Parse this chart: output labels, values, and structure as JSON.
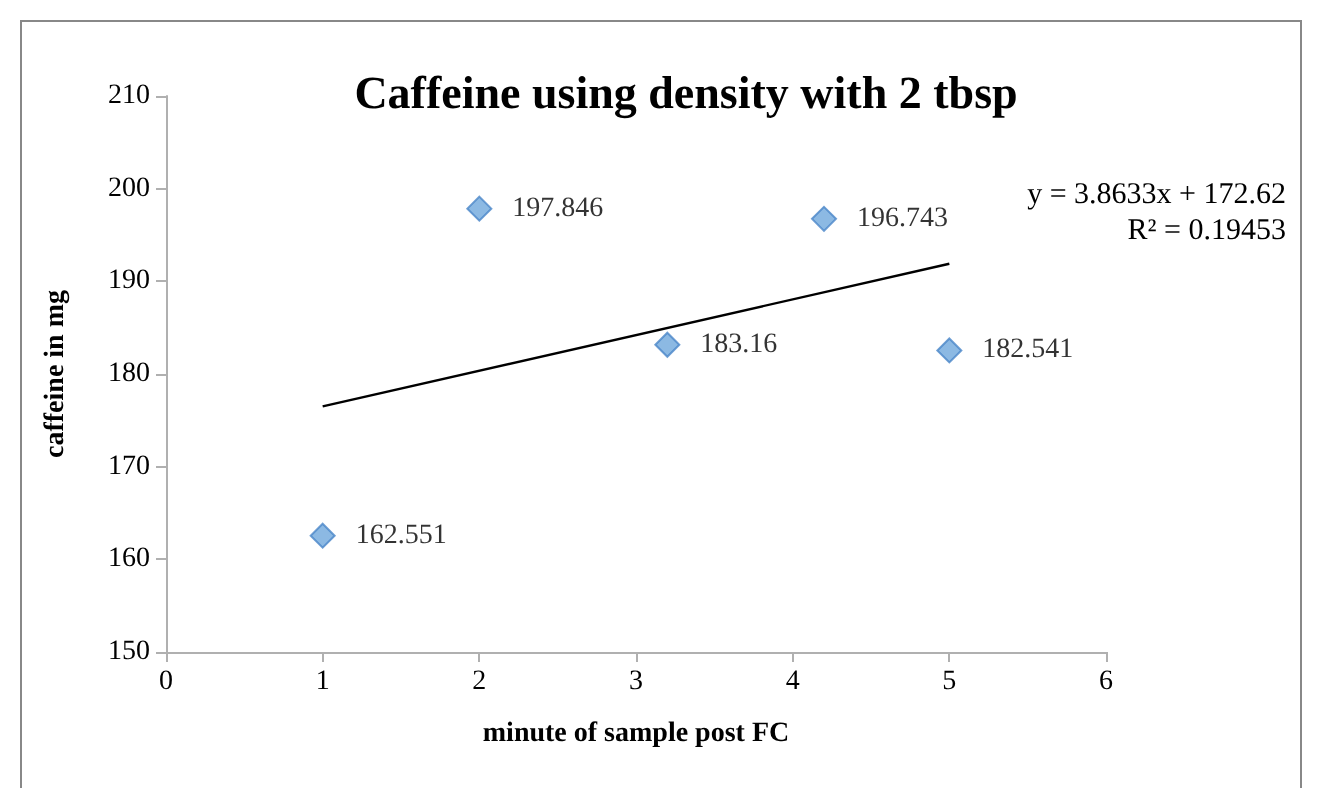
{
  "chart_data": {
    "type": "scatter",
    "title": "Caffeine using density with 2 tbsp",
    "xlabel": "minute of sample post FC",
    "ylabel": "caffeine in mg",
    "x": [
      1,
      2,
      3.2,
      4.2,
      5
    ],
    "series": [
      {
        "color": "#6fa8dc",
        "values": [
          162.551,
          197.846,
          183.16,
          196.743,
          182.541
        ],
        "value_labels": [
          "162.551",
          "197.846",
          "183.16",
          "196.743",
          "182.541"
        ]
      },
      {
        "type": "line",
        "marker": "none",
        "color": "#000000",
        "x": [
          1,
          5
        ],
        "values": [
          176.5,
          191.9
        ]
      }
    ],
    "annotations": [
      "y = 3.8633x + 172.62",
      "R² = 0.19453"
    ],
    "xlim": [
      0,
      6
    ],
    "xticks": [
      0,
      1,
      2,
      3,
      4,
      5,
      6
    ],
    "ylim": [
      150,
      210
    ],
    "yticks": [
      150,
      160,
      170,
      180,
      190,
      200,
      210
    ],
    "grid": false,
    "marker": "diamond",
    "line_style": "solid"
  }
}
